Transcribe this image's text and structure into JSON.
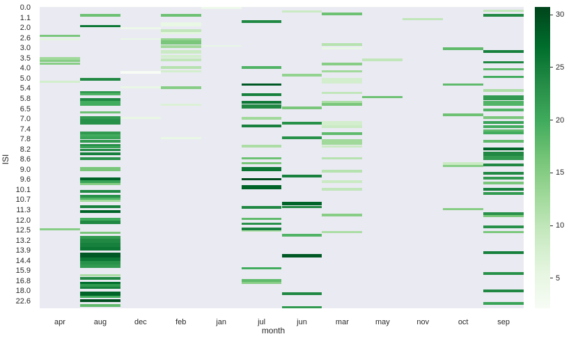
{
  "chart_data": {
    "type": "heatmap",
    "title": "",
    "xlabel": "month",
    "ylabel": "ISI",
    "x_categories": [
      "apr",
      "aug",
      "dec",
      "feb",
      "jan",
      "jul",
      "jun",
      "mar",
      "may",
      "nov",
      "oct",
      "sep"
    ],
    "y_tick_labels": [
      "0.0",
      "1.1",
      "2.0",
      "2.6",
      "3.0",
      "3.5",
      "4.0",
      "5.0",
      "5.4",
      "5.8",
      "6.5",
      "7.0",
      "7.4",
      "7.8",
      "8.2",
      "8.6",
      "9.0",
      "9.6",
      "10.1",
      "10.7",
      "11.3",
      "12.0",
      "12.5",
      "13.2",
      "13.9",
      "14.4",
      "15.9",
      "16.8",
      "18.0",
      "22.6"
    ],
    "colorbar": {
      "cmap": "Greens",
      "ticks": [
        5,
        10,
        15,
        20,
        25,
        30
      ],
      "range": [
        2.2,
        30.8
      ]
    },
    "grid_background": "#eaeaf2",
    "note": "Stripes given as [y_px_top, height_px, value] in image coordinates per month column",
    "columns": {
      "apr": [
        [
          50,
          3,
          16
        ],
        [
          55,
          3,
          6
        ],
        [
          82,
          4,
          13
        ],
        [
          86,
          3,
          15
        ],
        [
          90,
          3,
          15
        ],
        [
          116,
          3,
          8
        ],
        [
          328,
          3,
          15
        ]
      ],
      "aug": [
        [
          20,
          4,
          17
        ],
        [
          36,
          3,
          26
        ],
        [
          112,
          4,
          24
        ],
        [
          131,
          3,
          22
        ],
        [
          134,
          3,
          19
        ],
        [
          141,
          4,
          24
        ],
        [
          145,
          7,
          20
        ],
        [
          160,
          3,
          17
        ],
        [
          167,
          5,
          22
        ],
        [
          171,
          8,
          23
        ],
        [
          189,
          4,
          22
        ],
        [
          193,
          3,
          20
        ],
        [
          196,
          4,
          21
        ],
        [
          201,
          4,
          22
        ],
        [
          207,
          3,
          23
        ],
        [
          210,
          3,
          21
        ],
        [
          214,
          3,
          24
        ],
        [
          219,
          4,
          25
        ],
        [
          226,
          4,
          23
        ],
        [
          240,
          6,
          16
        ],
        [
          255,
          4,
          28
        ],
        [
          259,
          4,
          21
        ],
        [
          263,
          3,
          15
        ],
        [
          273,
          4,
          24
        ],
        [
          280,
          4,
          23
        ],
        [
          284,
          4,
          19
        ],
        [
          287,
          3,
          13
        ],
        [
          295,
          4,
          25
        ],
        [
          302,
          4,
          28
        ],
        [
          313,
          4,
          20
        ],
        [
          317,
          5,
          24
        ],
        [
          333,
          3,
          16
        ],
        [
          339,
          4,
          22
        ],
        [
          343,
          6,
          24
        ],
        [
          349,
          6,
          25
        ],
        [
          355,
          5,
          26
        ],
        [
          363,
          7,
          29
        ],
        [
          370,
          5,
          26
        ],
        [
          375,
          5,
          23
        ],
        [
          380,
          5,
          22
        ],
        [
          394,
          3,
          12
        ],
        [
          398,
          4,
          24
        ],
        [
          405,
          4,
          27
        ],
        [
          408,
          4,
          22
        ],
        [
          412,
          3,
          25
        ],
        [
          419,
          6,
          28
        ],
        [
          425,
          3,
          20
        ],
        [
          430,
          4,
          30
        ],
        [
          437,
          4,
          18
        ]
      ],
      "dec": [
        [
          39,
          3,
          4
        ],
        [
          55,
          2,
          5
        ],
        [
          102,
          4,
          2
        ],
        [
          124,
          3,
          5
        ],
        [
          168,
          3,
          5
        ]
      ],
      "feb": [
        [
          20,
          4,
          17
        ],
        [
          32,
          6,
          5
        ],
        [
          42,
          4,
          10
        ],
        [
          46,
          3,
          6
        ],
        [
          55,
          4,
          14
        ],
        [
          58,
          6,
          16
        ],
        [
          65,
          4,
          13
        ],
        [
          72,
          5,
          9
        ],
        [
          79,
          4,
          8
        ],
        [
          84,
          4,
          10
        ],
        [
          95,
          4,
          11
        ],
        [
          101,
          3,
          8
        ],
        [
          124,
          4,
          15
        ],
        [
          149,
          3,
          7
        ],
        [
          197,
          3,
          5
        ]
      ],
      "jan": [
        [
          10,
          3,
          4
        ],
        [
          65,
          2,
          5
        ]
      ],
      "jul": [
        [
          29,
          4,
          24
        ],
        [
          95,
          4,
          19
        ],
        [
          120,
          3,
          29
        ],
        [
          134,
          4,
          25
        ],
        [
          145,
          4,
          26
        ],
        [
          150,
          6,
          24
        ],
        [
          168,
          4,
          13
        ],
        [
          179,
          4,
          25
        ],
        [
          208,
          4,
          12
        ],
        [
          226,
          3,
          17
        ],
        [
          233,
          3,
          16
        ],
        [
          240,
          6,
          26
        ],
        [
          256,
          3,
          30
        ],
        [
          266,
          6,
          28
        ],
        [
          296,
          4,
          24
        ],
        [
          313,
          3,
          18
        ],
        [
          320,
          3,
          23
        ],
        [
          327,
          4,
          25
        ],
        [
          331,
          2,
          11
        ],
        [
          384,
          3,
          20
        ],
        [
          401,
          4,
          18
        ],
        [
          405,
          3,
          15
        ]
      ],
      "jun": [
        [
          15,
          3,
          9
        ],
        [
          106,
          4,
          14
        ],
        [
          153,
          4,
          16
        ],
        [
          175,
          4,
          23
        ],
        [
          196,
          4,
          23
        ],
        [
          251,
          4,
          25
        ],
        [
          290,
          5,
          28
        ],
        [
          296,
          3,
          24
        ],
        [
          336,
          4,
          19
        ],
        [
          365,
          5,
          29
        ],
        [
          420,
          4,
          24
        ],
        [
          440,
          4,
          22
        ]
      ],
      "mar": [
        [
          18,
          4,
          17
        ],
        [
          62,
          4,
          11
        ],
        [
          68,
          3,
          5
        ],
        [
          90,
          4,
          15
        ],
        [
          101,
          3,
          13
        ],
        [
          112,
          4,
          8
        ],
        [
          116,
          4,
          8
        ],
        [
          132,
          3,
          10
        ],
        [
          145,
          4,
          12
        ],
        [
          148,
          4,
          16
        ],
        [
          174,
          6,
          8
        ],
        [
          180,
          4,
          9
        ],
        [
          190,
          4,
          18
        ],
        [
          200,
          5,
          13
        ],
        [
          205,
          3,
          13
        ],
        [
          209,
          3,
          9
        ],
        [
          226,
          3,
          11
        ],
        [
          244,
          4,
          11
        ],
        [
          259,
          4,
          9
        ],
        [
          270,
          4,
          10
        ],
        [
          307,
          4,
          15
        ],
        [
          332,
          3,
          12
        ]
      ],
      "may": [
        [
          84,
          4,
          10
        ],
        [
          138,
          3,
          17
        ]
      ],
      "nov": [
        [
          26,
          3,
          10
        ]
      ],
      "oct": [
        [
          68,
          4,
          18
        ],
        [
          120,
          3,
          18
        ],
        [
          163,
          4,
          17
        ],
        [
          233,
          4,
          9
        ],
        [
          237,
          3,
          15
        ],
        [
          299,
          3,
          15
        ]
      ],
      "sep": [
        [
          14,
          3,
          10
        ],
        [
          20,
          4,
          24
        ],
        [
          72,
          4,
          25
        ],
        [
          88,
          3,
          24
        ],
        [
          98,
          3,
          18
        ],
        [
          109,
          3,
          20
        ],
        [
          128,
          4,
          12
        ],
        [
          137,
          7,
          22
        ],
        [
          145,
          7,
          19
        ],
        [
          156,
          4,
          19
        ],
        [
          167,
          4,
          16
        ],
        [
          174,
          4,
          21
        ],
        [
          180,
          4,
          20
        ],
        [
          186,
          4,
          18
        ],
        [
          189,
          4,
          20
        ],
        [
          201,
          4,
          18
        ],
        [
          212,
          4,
          28
        ],
        [
          218,
          6,
          24
        ],
        [
          224,
          6,
          22
        ],
        [
          235,
          4,
          24
        ],
        [
          247,
          4,
          24
        ],
        [
          254,
          4,
          22
        ],
        [
          261,
          4,
          16
        ],
        [
          270,
          4,
          25
        ],
        [
          276,
          4,
          22
        ],
        [
          305,
          4,
          23
        ],
        [
          309,
          3,
          16
        ],
        [
          324,
          4,
          23
        ],
        [
          332,
          3,
          16
        ],
        [
          361,
          4,
          25
        ],
        [
          391,
          4,
          23
        ],
        [
          416,
          4,
          24
        ],
        [
          434,
          4,
          21
        ]
      ]
    }
  }
}
